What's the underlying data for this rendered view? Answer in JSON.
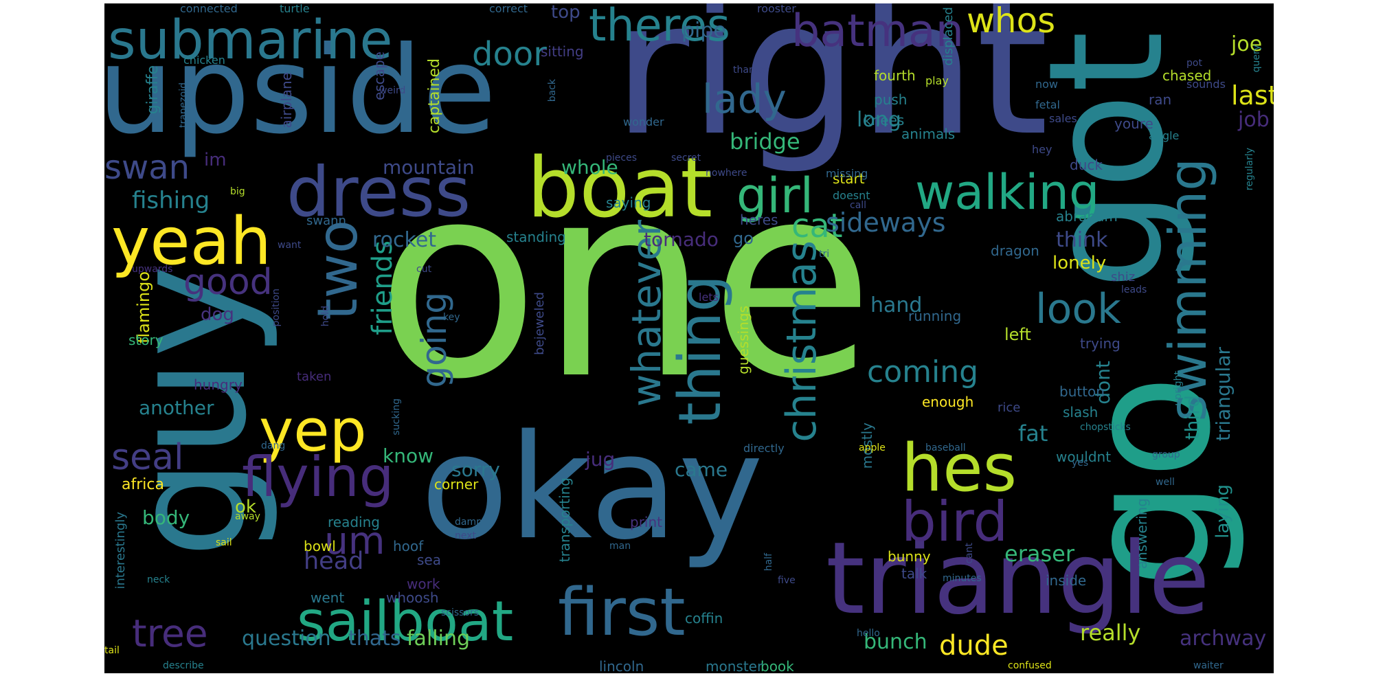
{
  "colors": {
    "background": "#000000",
    "page": "#ffffff",
    "palette": [
      "#440154",
      "#46327e",
      "#365c8d",
      "#277f8e",
      "#1fa187",
      "#4ac16d",
      "#a0da39",
      "#fde725"
    ]
  },
  "words": [
    {
      "text": "one",
      "color": "#7ad151"
    },
    {
      "text": "right",
      "color": "#3e4a89"
    },
    {
      "text": "upside",
      "color": "#31688e"
    },
    {
      "text": "okay",
      "color": "#31688e"
    },
    {
      "text": "guy",
      "color": "#2a788e"
    },
    {
      "text": "got",
      "color": "#26828e"
    },
    {
      "text": "go",
      "color": "#1f9e89"
    },
    {
      "text": "triangle",
      "color": "#46327e"
    },
    {
      "text": "boat",
      "color": "#b5de2b"
    },
    {
      "text": "dress",
      "color": "#3e4a89"
    },
    {
      "text": "submarine",
      "color": "#2a788e"
    },
    {
      "text": "yeah",
      "color": "#fde725"
    },
    {
      "text": "first",
      "color": "#31688e"
    },
    {
      "text": "sailboat",
      "color": "#22a884"
    },
    {
      "text": "hes",
      "color": "#b5de2b"
    },
    {
      "text": "yep",
      "color": "#fde725"
    },
    {
      "text": "flying",
      "color": "#472d7b"
    },
    {
      "text": "bird",
      "color": "#472d7b"
    },
    {
      "text": "theres",
      "color": "#26828e"
    },
    {
      "text": "batman",
      "color": "#46327e"
    },
    {
      "text": "two",
      "color": "#31688e"
    },
    {
      "text": "thing",
      "color": "#2a788e"
    },
    {
      "text": "swimming",
      "color": "#2a788e"
    },
    {
      "text": "walking",
      "color": "#22a884"
    },
    {
      "text": "girl",
      "color": "#35b779"
    },
    {
      "text": "whatever",
      "color": "#2a788e"
    },
    {
      "text": "christmas",
      "color": "#26828e"
    },
    {
      "text": "look",
      "color": "#2a788e"
    },
    {
      "text": "whos",
      "color": "#dde318"
    },
    {
      "text": "door",
      "color": "#26828e"
    },
    {
      "text": "lady",
      "color": "#31688e"
    },
    {
      "text": "cat",
      "color": "#35b779"
    },
    {
      "text": "good",
      "color": "#46327e"
    },
    {
      "text": "um",
      "color": "#46327e"
    },
    {
      "text": "tree",
      "color": "#472d7b"
    },
    {
      "text": "seal",
      "color": "#433e85"
    },
    {
      "text": "going",
      "color": "#31688e"
    },
    {
      "text": "friends",
      "color": "#1f9e89"
    },
    {
      "text": "coming",
      "color": "#26828e"
    },
    {
      "text": "swan",
      "color": "#3e4a89"
    },
    {
      "text": "sideways",
      "color": "#31688e"
    },
    {
      "text": "head",
      "color": "#433e85"
    },
    {
      "text": "fishing",
      "color": "#26828e"
    },
    {
      "text": "dude",
      "color": "#fde725"
    },
    {
      "text": "question",
      "color": "#2a788e"
    },
    {
      "text": "archway",
      "color": "#46327e"
    },
    {
      "text": "eraser",
      "color": "#35b779"
    },
    {
      "text": "really",
      "color": "#b5de2b"
    },
    {
      "text": "falling",
      "color": "#6ece58"
    },
    {
      "text": "thats",
      "color": "#31688e"
    },
    {
      "text": "bunch",
      "color": "#35b779"
    },
    {
      "text": "bridge",
      "color": "#35b779"
    },
    {
      "text": "last",
      "color": "#dde318"
    },
    {
      "text": "joe",
      "color": "#b5de2b"
    },
    {
      "text": "job",
      "color": "#472d7b"
    },
    {
      "text": "rocket",
      "color": "#31688e"
    },
    {
      "text": "mountain",
      "color": "#3e4a89"
    },
    {
      "text": "whole",
      "color": "#35b779"
    },
    {
      "text": "long",
      "color": "#26828e"
    },
    {
      "text": "pipe",
      "color": "#31688e"
    },
    {
      "text": "top",
      "color": "#3e4a89"
    },
    {
      "text": "tornado",
      "color": "#472d7b"
    },
    {
      "text": "hand",
      "color": "#2a788e"
    },
    {
      "text": "fat",
      "color": "#26828e"
    },
    {
      "text": "dont",
      "color": "#26828e"
    },
    {
      "text": "think",
      "color": "#3e4a89"
    },
    {
      "text": "lonely",
      "color": "#dde318"
    },
    {
      "text": "third",
      "color": "#21918c"
    },
    {
      "text": "triangular",
      "color": "#2a788e"
    },
    {
      "text": "laying",
      "color": "#21918c"
    },
    {
      "text": "another",
      "color": "#26828e"
    },
    {
      "text": "know",
      "color": "#35b779"
    },
    {
      "text": "sorry",
      "color": "#2a788e"
    },
    {
      "text": "came",
      "color": "#2a788e"
    },
    {
      "text": "jug",
      "color": "#472d7b"
    },
    {
      "text": "im",
      "color": "#472d7b"
    },
    {
      "text": "dog",
      "color": "#46327e"
    },
    {
      "text": "ok",
      "color": "#b5de2b"
    },
    {
      "text": "body",
      "color": "#35b779"
    },
    {
      "text": "africa",
      "color": "#fde725"
    },
    {
      "text": "flamingo",
      "color": "#dde318"
    },
    {
      "text": "giraffe",
      "color": "#26828e"
    },
    {
      "text": "captained",
      "color": "#b5de2b"
    },
    {
      "text": "airplane",
      "color": "#3e4a89"
    },
    {
      "text": "escape",
      "color": "#3e4a89"
    },
    {
      "text": "sitting",
      "color": "#433e85"
    },
    {
      "text": "fourth",
      "color": "#b5de2b"
    },
    {
      "text": "push",
      "color": "#26828e"
    },
    {
      "text": "knees",
      "color": "#26828e"
    },
    {
      "text": "start",
      "color": "#dde318"
    },
    {
      "text": "go",
      "color": "#31688e"
    },
    {
      "text": "heres",
      "color": "#3e4a89"
    },
    {
      "text": "saying",
      "color": "#26828e"
    },
    {
      "text": "standing",
      "color": "#26828e"
    },
    {
      "text": "duck",
      "color": "#3e4a89"
    },
    {
      "text": "abraham",
      "color": "#26828e"
    },
    {
      "text": "dragon",
      "color": "#31688e"
    },
    {
      "text": "running",
      "color": "#31688e"
    },
    {
      "text": "left",
      "color": "#b5de2b"
    },
    {
      "text": "trying",
      "color": "#3e4a89"
    },
    {
      "text": "button",
      "color": "#31688e"
    },
    {
      "text": "slash",
      "color": "#26828e"
    },
    {
      "text": "wouldnt",
      "color": "#26828e"
    },
    {
      "text": "enough",
      "color": "#fde725"
    },
    {
      "text": "chased",
      "color": "#b5de2b"
    },
    {
      "text": "ran",
      "color": "#3e4a89"
    },
    {
      "text": "youre",
      "color": "#3e4a89"
    },
    {
      "text": "animals",
      "color": "#26828e"
    },
    {
      "text": "story",
      "color": "#35b779"
    },
    {
      "text": "hungry",
      "color": "#472d7b"
    },
    {
      "text": "reading",
      "color": "#26828e"
    },
    {
      "text": "corner",
      "color": "#dde318"
    },
    {
      "text": "bowl",
      "color": "#dde318"
    },
    {
      "text": "hoof",
      "color": "#31688e"
    },
    {
      "text": "sea",
      "color": "#3e4a89"
    },
    {
      "text": "whoosh",
      "color": "#3e4a89"
    },
    {
      "text": "went",
      "color": "#2a788e"
    },
    {
      "text": "work",
      "color": "#472d7b"
    },
    {
      "text": "print",
      "color": "#46327e"
    },
    {
      "text": "coffin",
      "color": "#26828e"
    },
    {
      "text": "book",
      "color": "#35b779"
    },
    {
      "text": "monster",
      "color": "#2a788e"
    },
    {
      "text": "lincoln",
      "color": "#31688e"
    },
    {
      "text": "talk",
      "color": "#3e4a89"
    },
    {
      "text": "bunny",
      "color": "#dde318"
    },
    {
      "text": "inside",
      "color": "#31688e"
    },
    {
      "text": "answering",
      "color": "#26828e"
    },
    {
      "text": "transporting",
      "color": "#26828e"
    },
    {
      "text": "guessings",
      "color": "#b5de2b"
    },
    {
      "text": "mostly",
      "color": "#2a788e"
    },
    {
      "text": "bejeweled",
      "color": "#3e4a89"
    },
    {
      "text": "taken",
      "color": "#472d7b"
    },
    {
      "text": "interestingly",
      "color": "#2a788e"
    },
    {
      "text": "shiz",
      "color": "#3e4a89"
    },
    {
      "text": "rice",
      "color": "#3e4a89"
    },
    {
      "text": "connected",
      "color": "#31688e"
    },
    {
      "text": "turtle",
      "color": "#26828e"
    },
    {
      "text": "correct",
      "color": "#31688e"
    },
    {
      "text": "rooster",
      "color": "#3e4a89"
    },
    {
      "text": "chicken",
      "color": "#26828e"
    },
    {
      "text": "kiwi",
      "color": "#31688e"
    },
    {
      "text": "thanks",
      "color": "#3e4a89"
    },
    {
      "text": "play",
      "color": "#b5de2b"
    },
    {
      "text": "pot",
      "color": "#3e4a89"
    },
    {
      "text": "query",
      "color": "#26828e"
    },
    {
      "text": "sounds",
      "color": "#3e4a89"
    },
    {
      "text": "now",
      "color": "#31688e"
    },
    {
      "text": "fetal",
      "color": "#31688e"
    },
    {
      "text": "sales",
      "color": "#3e4a89"
    },
    {
      "text": "angle",
      "color": "#26828e"
    },
    {
      "text": "weird",
      "color": "#3e4a89"
    },
    {
      "text": "back",
      "color": "#31688e"
    },
    {
      "text": "wonder",
      "color": "#31688e"
    },
    {
      "text": "trapezoid",
      "color": "#31688e"
    },
    {
      "text": "pieces",
      "color": "#3e4a89"
    },
    {
      "text": "secret",
      "color": "#3e4a89"
    },
    {
      "text": "hey",
      "color": "#3e4a89"
    },
    {
      "text": "regularly",
      "color": "#26828e"
    },
    {
      "text": "nowhere",
      "color": "#3e4a89"
    },
    {
      "text": "missing",
      "color": "#31688e"
    },
    {
      "text": "doesnt",
      "color": "#26828e"
    },
    {
      "text": "call",
      "color": "#3e4a89"
    },
    {
      "text": "big",
      "color": "#b5de2b"
    },
    {
      "text": "swann",
      "color": "#31688e"
    },
    {
      "text": "want",
      "color": "#3e4a89"
    },
    {
      "text": "cut",
      "color": "#3e4a89"
    },
    {
      "text": "tri",
      "color": "#31688e"
    },
    {
      "text": "upwards",
      "color": "#46327e"
    },
    {
      "text": "lets",
      "color": "#46327e"
    },
    {
      "text": "position",
      "color": "#3e4a89"
    },
    {
      "text": "hold",
      "color": "#3e4a89"
    },
    {
      "text": "key",
      "color": "#31688e"
    },
    {
      "text": "leads",
      "color": "#3e4a89"
    },
    {
      "text": "upright",
      "color": "#26828e"
    },
    {
      "text": "displaced",
      "color": "#26828e"
    },
    {
      "text": "sucking",
      "color": "#31688e"
    },
    {
      "text": "dang",
      "color": "#31688e"
    },
    {
      "text": "directly",
      "color": "#31688e"
    },
    {
      "text": "apple",
      "color": "#dde318"
    },
    {
      "text": "baseball",
      "color": "#31688e"
    },
    {
      "text": "yes",
      "color": "#31688e"
    },
    {
      "text": "chopsticks",
      "color": "#26828e"
    },
    {
      "text": "group",
      "color": "#31688e"
    },
    {
      "text": "well",
      "color": "#31688e"
    },
    {
      "text": "away",
      "color": "#b5de2b"
    },
    {
      "text": "sail",
      "color": "#dde318"
    },
    {
      "text": "damp",
      "color": "#31688e"
    },
    {
      "text": "next",
      "color": "#3e4a89"
    },
    {
      "text": "man",
      "color": "#31688e"
    },
    {
      "text": "half",
      "color": "#31688e"
    },
    {
      "text": "five",
      "color": "#3e4a89"
    },
    {
      "text": "cant",
      "color": "#3e4a89"
    },
    {
      "text": "minutes",
      "color": "#31688e"
    },
    {
      "text": "neck",
      "color": "#26828e"
    },
    {
      "text": "scissors",
      "color": "#31688e"
    },
    {
      "text": "hello",
      "color": "#31688e"
    },
    {
      "text": "tail",
      "color": "#dde318"
    },
    {
      "text": "describe",
      "color": "#26828e"
    },
    {
      "text": "confused",
      "color": "#dde318"
    },
    {
      "text": "waiter",
      "color": "#31688e"
    }
  ]
}
